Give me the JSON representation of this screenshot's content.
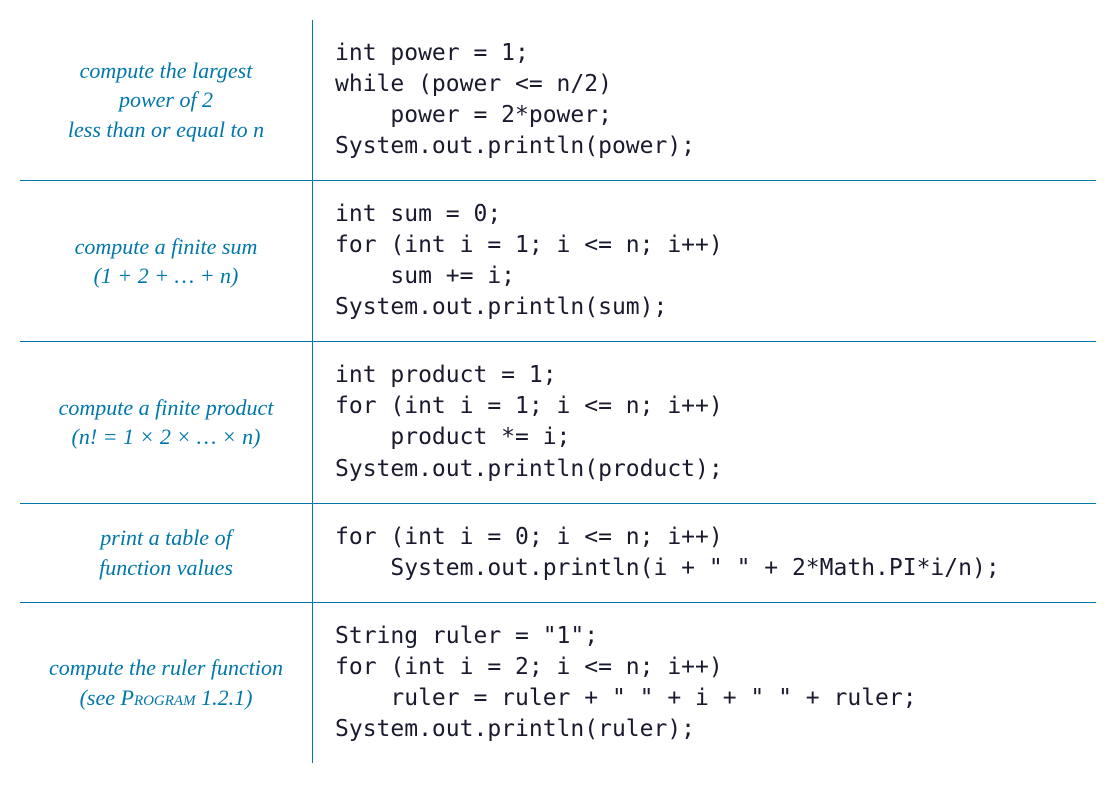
{
  "colors": {
    "accent": "#0077aa",
    "text": "#1a1a2e",
    "background": "#ffffff"
  },
  "typography": {
    "desc_font": "Palatino Linotype, Palatino, Georgia, serif",
    "desc_fontsize": 22,
    "desc_style": "italic",
    "code_font": "Lucida Sans Typewriter, Lucida Console, Consolas, monospace",
    "code_fontsize": 23
  },
  "rows": [
    {
      "desc_html": "compute the largest<br>power of 2<br>less than or equal to n",
      "code": "int power = 1;\nwhile (power <= n/2)\n    power = 2*power;\nSystem.out.println(power);"
    },
    {
      "desc_html": "compute a finite sum<br>(1 + 2 + … + n)",
      "code": "int sum = 0;\nfor (int i = 1; i <= n; i++)\n    sum += i;\nSystem.out.println(sum);"
    },
    {
      "desc_html": "compute a finite product<br>(n! = 1 × 2 ×  … × n)",
      "code": "int product = 1;\nfor (int i = 1; i <= n; i++)\n    product *= i;\nSystem.out.println(product);"
    },
    {
      "desc_html": "print a table of<br>function values",
      "code": "for (int i = 0; i <= n; i++)\n    System.out.println(i + \" \" + 2*Math.PI*i/n);"
    },
    {
      "desc_html": "compute the ruler function<br>(see <span class=\"smallcaps\">Program</span> 1.2.1)",
      "code": "String ruler = \"1\";\nfor (int i = 2; i <= n; i++)\n    ruler = ruler + \" \" + i + \" \" + ruler;\nSystem.out.println(ruler);"
    }
  ]
}
